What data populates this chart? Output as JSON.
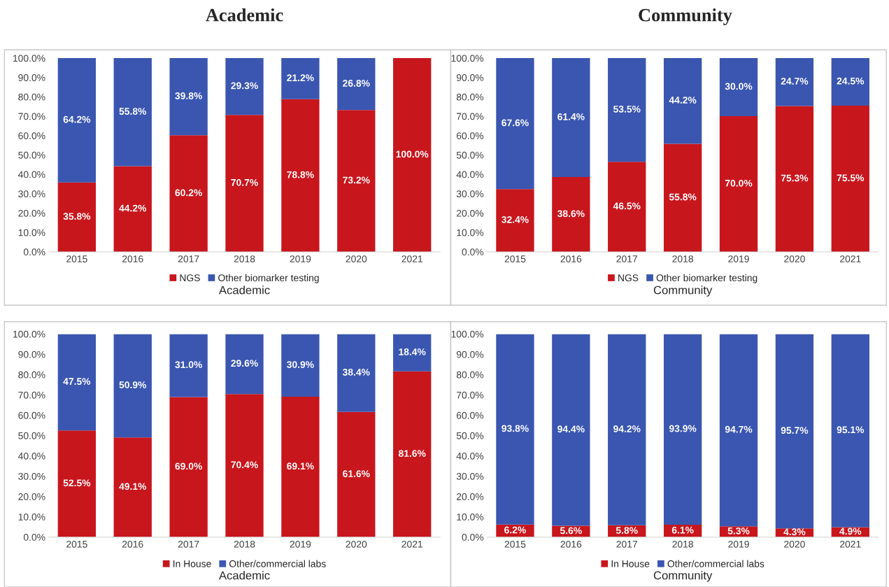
{
  "chart_data": [
    {
      "type": "bar",
      "title": "Academic",
      "xlabel": "Academic",
      "stacked": true,
      "legend": "bottom",
      "categories": [
        "2015",
        "2016",
        "2017",
        "2018",
        "2019",
        "2020",
        "2021"
      ],
      "ylim": [
        0,
        100
      ],
      "yticks": [
        {
          "value": 0,
          "label": "0.0%"
        },
        {
          "value": 10,
          "label": "10.0%"
        },
        {
          "value": 20,
          "label": "20.0%"
        },
        {
          "value": 30,
          "label": "30.0%"
        },
        {
          "value": 40,
          "label": "40.0%"
        },
        {
          "value": 50,
          "label": "50.0%"
        },
        {
          "value": 60,
          "label": "60.0%"
        },
        {
          "value": 70,
          "label": "70.0%"
        },
        {
          "value": 80,
          "label": "80.0%"
        },
        {
          "value": 90,
          "label": "90.0%"
        },
        {
          "value": 100,
          "label": "100.0%"
        }
      ],
      "series": [
        {
          "name": "NGS",
          "color": "#c8161d",
          "values": [
            35.8,
            44.2,
            60.2,
            70.7,
            78.8,
            73.2,
            100.0
          ],
          "value_labels": [
            "35.8%",
            "44.2%",
            "60.2%",
            "70.7%",
            "78.8%",
            "73.2%",
            "100.0%"
          ]
        },
        {
          "name": "Other biomarker testing",
          "color": "#3a56b0",
          "values": [
            64.2,
            55.8,
            39.8,
            29.3,
            21.2,
            26.8,
            0
          ],
          "value_labels": [
            "64.2%",
            "55.8%",
            "39.8%",
            "29.3%",
            "21.2%",
            "26.8%",
            null
          ]
        }
      ]
    },
    {
      "type": "bar",
      "title": " Community",
      "xlabel": "Community",
      "stacked": true,
      "legend": "bottom",
      "categories": [
        "2015",
        "2016",
        "2017",
        "2018",
        "2019",
        "2020",
        "2021"
      ],
      "ylim": [
        0,
        100
      ],
      "yticks": [
        {
          "value": 0,
          "label": "0.0%"
        },
        {
          "value": 10,
          "label": "10.0%"
        },
        {
          "value": 20,
          "label": "20.0%"
        },
        {
          "value": 30,
          "label": "30.0%"
        },
        {
          "value": 40,
          "label": "40.0%"
        },
        {
          "value": 50,
          "label": "50.0%"
        },
        {
          "value": 60,
          "label": "60.0%"
        },
        {
          "value": 70,
          "label": "70.0%"
        },
        {
          "value": 80,
          "label": "80.0%"
        },
        {
          "value": 90,
          "label": "90.0%"
        },
        {
          "value": 100,
          "label": "100.0%"
        }
      ],
      "series": [
        {
          "name": "NGS",
          "color": "#c8161d",
          "values": [
            32.4,
            38.6,
            46.5,
            55.8,
            70.0,
            75.3,
            75.5
          ],
          "value_labels": [
            "32.4%",
            "38.6%",
            "46.5%",
            "55.8%",
            "70.0%",
            "75.3%",
            "75.5%"
          ]
        },
        {
          "name": "Other biomarker testing",
          "color": "#3a56b0",
          "values": [
            67.6,
            61.4,
            53.5,
            44.2,
            30.0,
            24.7,
            24.5
          ],
          "value_labels": [
            "67.6%",
            "61.4%",
            "53.5%",
            "44.2%",
            "30.0%",
            "24.7%",
            "24.5%"
          ]
        }
      ]
    },
    {
      "type": "bar",
      "xlabel": "Academic",
      "stacked": true,
      "legend": "bottom",
      "categories": [
        "2015",
        "2016",
        "2017",
        "2018",
        "2019",
        "2020",
        "2021"
      ],
      "ylim": [
        0,
        100
      ],
      "yticks": [
        {
          "value": 0,
          "label": "0.0%"
        },
        {
          "value": 10,
          "label": "10.0%"
        },
        {
          "value": 20,
          "label": "20.0%"
        },
        {
          "value": 30,
          "label": "30.0%"
        },
        {
          "value": 40,
          "label": "40.0%"
        },
        {
          "value": 50,
          "label": "50.0%"
        },
        {
          "value": 60,
          "label": "60.0%"
        },
        {
          "value": 70,
          "label": "70.0%"
        },
        {
          "value": 80,
          "label": "80.0%"
        },
        {
          "value": 90,
          "label": "90.0%"
        },
        {
          "value": 100,
          "label": "100.0%"
        }
      ],
      "series": [
        {
          "name": "In House",
          "color": "#c8161d",
          "values": [
            52.5,
            49.1,
            69.0,
            70.4,
            69.1,
            61.6,
            81.6
          ],
          "value_labels": [
            "52.5%",
            "49.1%",
            "69.0%",
            "70.4%",
            "69.1%",
            "61.6%",
            "81.6%"
          ]
        },
        {
          "name": "Other/commercial labs",
          "color": "#3a56b0",
          "values": [
            47.5,
            50.9,
            31.0,
            29.6,
            30.9,
            38.4,
            18.4
          ],
          "value_labels": [
            "47.5%",
            "50.9%",
            "31.0%",
            "29.6%",
            "30.9%",
            "38.4%",
            "18.4%"
          ]
        }
      ]
    },
    {
      "type": "bar",
      "xlabel": "Community",
      "stacked": true,
      "legend": "bottom",
      "categories": [
        "2015",
        "2016",
        "2017",
        "2018",
        "2019",
        "2020",
        "2021"
      ],
      "ylim": [
        0,
        100
      ],
      "yticks": [
        {
          "value": 0,
          "label": "0.0%"
        },
        {
          "value": 10,
          "label": "10.0%"
        },
        {
          "value": 20,
          "label": "20.0%"
        },
        {
          "value": 30,
          "label": "30.0%"
        },
        {
          "value": 40,
          "label": "40.0%"
        },
        {
          "value": 50,
          "label": "50.0%"
        },
        {
          "value": 60,
          "label": "60.0%"
        },
        {
          "value": 70,
          "label": "70.0%"
        },
        {
          "value": 80,
          "label": "80.0%"
        },
        {
          "value": 90,
          "label": "90.0%"
        },
        {
          "value": 100,
          "label": "100.0%"
        }
      ],
      "series": [
        {
          "name": "In House",
          "color": "#c8161d",
          "values": [
            6.2,
            5.6,
            5.8,
            6.1,
            5.3,
            4.3,
            4.9
          ],
          "value_labels": [
            "6.2%",
            "5.6%",
            "5.8%",
            "6.1%",
            "5.3%",
            "4.3%",
            "4.9%"
          ]
        },
        {
          "name": "Other/commercial labs",
          "color": "#3a56b0",
          "values": [
            93.8,
            94.4,
            94.2,
            93.9,
            94.7,
            95.7,
            95.1
          ],
          "value_labels": [
            "93.8%",
            "94.4%",
            "94.2%",
            "93.9%",
            "94.7%",
            "95.7%",
            "95.1%"
          ]
        }
      ]
    }
  ]
}
